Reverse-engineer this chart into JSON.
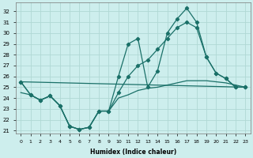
{
  "xlabel": "Humidex (Indice chaleur)",
  "xlim": [
    -0.5,
    23.5
  ],
  "ylim": [
    20.7,
    32.8
  ],
  "yticks": [
    21,
    22,
    23,
    24,
    25,
    26,
    27,
    28,
    29,
    30,
    31,
    32
  ],
  "xticks": [
    0,
    1,
    2,
    3,
    4,
    5,
    6,
    7,
    8,
    9,
    10,
    11,
    12,
    13,
    14,
    15,
    16,
    17,
    18,
    19,
    20,
    21,
    22,
    23
  ],
  "xtick_labels": [
    "0",
    "1",
    "2",
    "3",
    "4",
    "5",
    "6",
    "7",
    "8",
    "9",
    "10",
    "11",
    "12",
    "13",
    "14",
    "15",
    "16",
    "17",
    "18",
    "19",
    "20",
    "21",
    "22",
    "23"
  ],
  "bg_color": "#cdeeed",
  "grid_color": "#b0d8d4",
  "line_color": "#1a7068",
  "line1_x": [
    0,
    1,
    2,
    3,
    4,
    5,
    6,
    7,
    8,
    9,
    10,
    11,
    12,
    13,
    14,
    15,
    16,
    17,
    18,
    19,
    20,
    21,
    22,
    23
  ],
  "line1_y": [
    25.5,
    24.3,
    23.8,
    24.2,
    23.3,
    21.4,
    21.1,
    21.3,
    22.8,
    22.8,
    26.0,
    29.0,
    29.5,
    25.0,
    26.5,
    30.0,
    31.3,
    32.3,
    31.0,
    27.8,
    26.3,
    25.8,
    25.0,
    25.0
  ],
  "line2_x": [
    0,
    1,
    2,
    3,
    4,
    5,
    6,
    7,
    8,
    9,
    10,
    11,
    12,
    13,
    14,
    15,
    16,
    17,
    18,
    19,
    20,
    21,
    22,
    23
  ],
  "line2_y": [
    25.5,
    24.3,
    23.8,
    24.2,
    23.3,
    21.4,
    21.1,
    21.3,
    22.8,
    22.8,
    24.5,
    26.0,
    27.0,
    27.5,
    28.5,
    29.5,
    30.5,
    31.0,
    30.5,
    27.8,
    26.3,
    25.8,
    25.0,
    25.0
  ],
  "line3_x": [
    0,
    23
  ],
  "line3_y": [
    25.5,
    25.0
  ],
  "line4_x": [
    0,
    1,
    2,
    3,
    4,
    5,
    6,
    7,
    8,
    9,
    10,
    11,
    12,
    13,
    14,
    15,
    16,
    17,
    18,
    19,
    20,
    21,
    22,
    23
  ],
  "line4_y": [
    24.5,
    24.3,
    23.8,
    24.2,
    23.3,
    21.4,
    21.1,
    21.3,
    22.8,
    22.8,
    24.0,
    24.3,
    24.7,
    24.9,
    25.0,
    25.2,
    25.4,
    25.6,
    25.6,
    25.6,
    25.5,
    25.4,
    25.2,
    25.0
  ]
}
